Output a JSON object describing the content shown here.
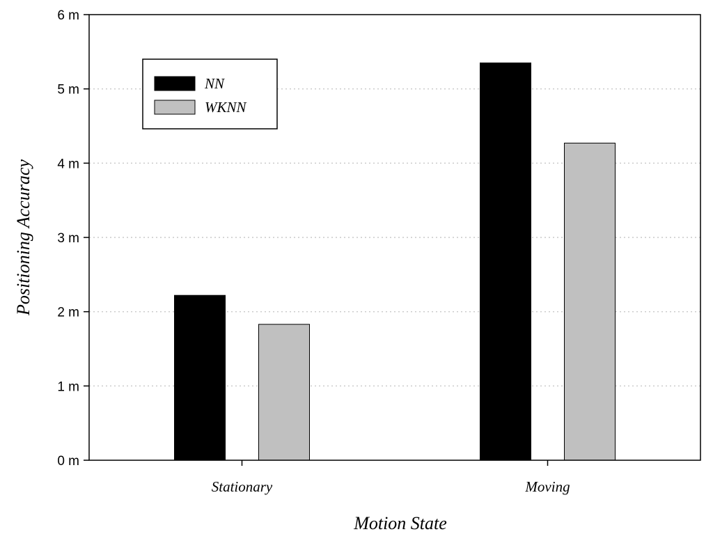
{
  "chart_data": {
    "type": "bar",
    "categories": [
      "Stationary",
      "Moving"
    ],
    "series": [
      {
        "name": "NN",
        "values": [
          2.22,
          5.35
        ],
        "color": "#000000"
      },
      {
        "name": "WKNN",
        "values": [
          1.83,
          4.27
        ],
        "color": "#c0c0c0"
      }
    ],
    "xlabel": "Motion State",
    "ylabel": "Positioning Accuracy",
    "ylim": [
      0,
      6
    ],
    "yticks": [
      "0 m",
      "1 m",
      "2 m",
      "3 m",
      "4 m",
      "5 m",
      "6 m"
    ],
    "grid": true,
    "legend_position": "top-left"
  }
}
